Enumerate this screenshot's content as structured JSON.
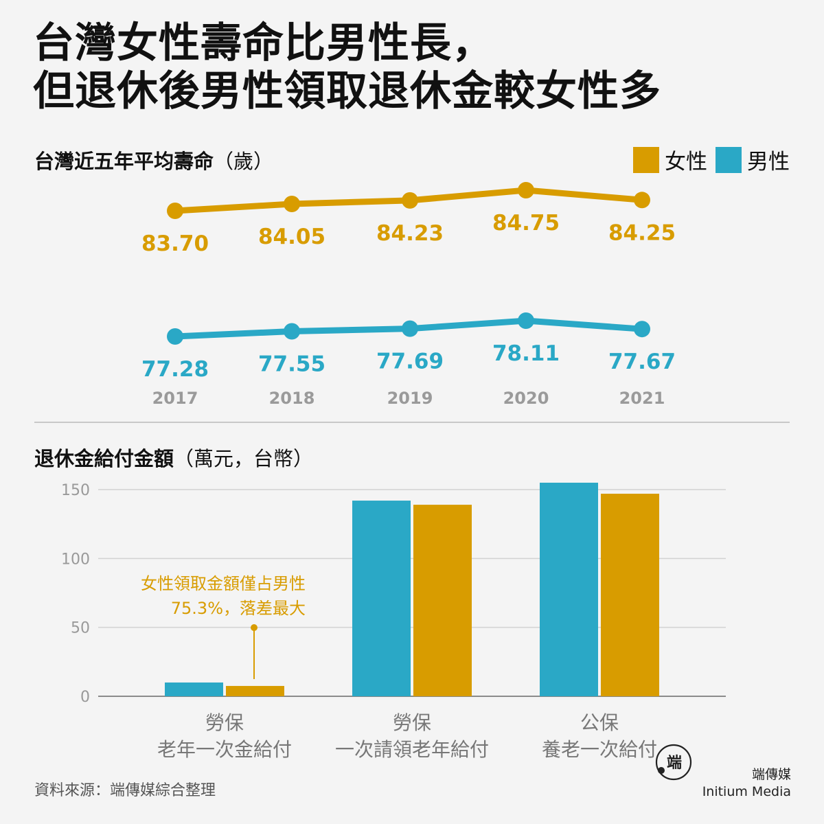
{
  "title": {
    "line1": "台灣女性壽命比男性長，",
    "line2": "但退休後男性領取退休金較女性多"
  },
  "colors": {
    "female": "#d89c00",
    "male": "#2aa8c6",
    "axis": "#999999",
    "year": "#9a9a9a"
  },
  "legend": {
    "female": "女性",
    "male": "男性"
  },
  "section1": {
    "title": "台灣近五年平均壽命",
    "unit": "（歲）"
  },
  "section2": {
    "title": "退休金給付金額",
    "unit": "（萬元，台幣）"
  },
  "annotation": {
    "line1": "女性領取金額僅占男性",
    "line2": "75.3%，落差最大"
  },
  "source": "資料來源：端傳媒綜合整理",
  "logo": {
    "mark_text": "端",
    "cn": "端傳媒",
    "en": "Initium Media"
  },
  "chart_data": [
    {
      "type": "line",
      "title": "台灣近五年平均壽命（歲）",
      "x": [
        "2017",
        "2018",
        "2019",
        "2020",
        "2021"
      ],
      "series": [
        {
          "name": "女性",
          "values": [
            83.7,
            84.05,
            84.23,
            84.75,
            84.25
          ],
          "labels": [
            "83.70",
            "84.05",
            "84.23",
            "84.75",
            "84.25"
          ]
        },
        {
          "name": "男性",
          "values": [
            77.28,
            77.55,
            77.69,
            78.11,
            77.67
          ],
          "labels": [
            "77.28",
            "77.55",
            "77.69",
            "78.11",
            "77.67"
          ]
        }
      ],
      "grid": false,
      "legend": "top-right"
    },
    {
      "type": "bar",
      "title": "退休金給付金額（萬元，台幣）",
      "categories": [
        [
          "勞保",
          "老年一次金給付"
        ],
        [
          "勞保",
          "一次請領老年給付"
        ],
        [
          "公保",
          "養老一次給付"
        ]
      ],
      "series": [
        {
          "name": "男性",
          "values": [
            10,
            142,
            155
          ]
        },
        {
          "name": "女性",
          "values": [
            7.5,
            139,
            147
          ]
        }
      ],
      "ylim": [
        0,
        150
      ],
      "yticks": [
        "0",
        "50",
        "100",
        "150"
      ],
      "grid": true
    }
  ]
}
